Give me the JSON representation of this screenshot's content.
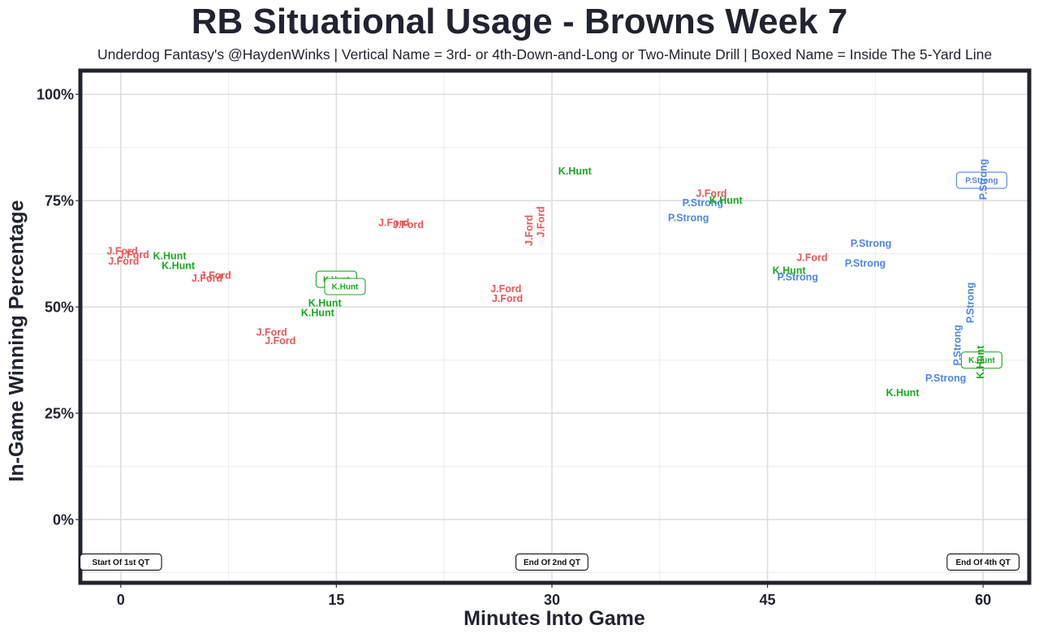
{
  "chart_data": {
    "type": "scatter",
    "title": "RB Situational Usage - Browns Week 7",
    "subtitle": "Underdog Fantasy's @HaydenWinks | Vertical Name = 3rd- or 4th-Down-and-Long or Two-Minute Drill | Boxed Name = Inside The 5-Yard Line",
    "xlabel": "Minutes Into Game",
    "ylabel": "In-Game Winning Percentage",
    "xlim": [
      -2.7,
      63.1
    ],
    "ylim": [
      -14.5,
      105.2
    ],
    "x_ticks": [
      0,
      15,
      30,
      45,
      60
    ],
    "x_tick_labels": [
      "0",
      "15",
      "30",
      "45",
      "60"
    ],
    "y_ticks": [
      0,
      25,
      50,
      75,
      100
    ],
    "y_tick_labels": [
      "0%",
      "25%",
      "50%",
      "75%",
      "100%"
    ],
    "grid": true,
    "colors": {
      "J.Ford": "#f05454",
      "K.Hunt": "#19aa1e",
      "P.Strong": "#4f86e8"
    },
    "markers": [
      {
        "label": "Start Of 1st QT",
        "x": 0,
        "y": -10
      },
      {
        "label": "End Of 2nd QT",
        "x": 30,
        "y": -10
      },
      {
        "label": "End Of 4th QT",
        "x": 60,
        "y": -10
      }
    ],
    "points": [
      {
        "player": "J.Ford",
        "x": 0.1,
        "y": 63.2
      },
      {
        "player": "J.Ford",
        "x": 0.9,
        "y": 62.3
      },
      {
        "player": "J.Ford",
        "x": 0.2,
        "y": 60.8
      },
      {
        "player": "K.Hunt",
        "x": 3.4,
        "y": 62.1
      },
      {
        "player": "K.Hunt",
        "x": 4.0,
        "y": 59.8
      },
      {
        "player": "J.Ford",
        "x": 6.6,
        "y": 57.5
      },
      {
        "player": "J.Ford",
        "x": 6.0,
        "y": 56.8
      },
      {
        "player": "K.Hunt",
        "x": 15.0,
        "y": 56.5,
        "boxed": true
      },
      {
        "player": "K.Hunt",
        "x": 15.6,
        "y": 54.8,
        "boxed": true
      },
      {
        "player": "K.Hunt",
        "x": 14.2,
        "y": 51.0
      },
      {
        "player": "K.Hunt",
        "x": 13.7,
        "y": 48.7
      },
      {
        "player": "J.Ford",
        "x": 10.5,
        "y": 44.1
      },
      {
        "player": "J.Ford",
        "x": 11.1,
        "y": 42.1
      },
      {
        "player": "J.Ford",
        "x": 19.0,
        "y": 69.9
      },
      {
        "player": "J.Ford",
        "x": 20.0,
        "y": 69.4
      },
      {
        "player": "J.Ford",
        "x": 29.2,
        "y": 70.0,
        "vertical": true
      },
      {
        "player": "J.Ford",
        "x": 28.4,
        "y": 68.0,
        "vertical": true
      },
      {
        "player": "K.Hunt",
        "x": 31.6,
        "y": 82.0
      },
      {
        "player": "J.Ford",
        "x": 26.8,
        "y": 54.3
      },
      {
        "player": "J.Ford",
        "x": 26.9,
        "y": 52.0
      },
      {
        "player": "J.Ford",
        "x": 41.1,
        "y": 76.8
      },
      {
        "player": "P.Strong",
        "x": 40.5,
        "y": 74.6
      },
      {
        "player": "K.Hunt",
        "x": 42.1,
        "y": 75.1
      },
      {
        "player": "P.Strong",
        "x": 39.5,
        "y": 71.0
      },
      {
        "player": "P.Strong",
        "x": 52.2,
        "y": 65.0
      },
      {
        "player": "J.Ford",
        "x": 48.1,
        "y": 61.7
      },
      {
        "player": "P.Strong",
        "x": 51.8,
        "y": 60.3
      },
      {
        "player": "K.Hunt",
        "x": 46.5,
        "y": 58.6
      },
      {
        "player": "P.Strong",
        "x": 47.1,
        "y": 57.1
      },
      {
        "player": "P.Strong",
        "x": 59.9,
        "y": 79.8,
        "boxed": true
      },
      {
        "player": "P.Strong",
        "x": 60.0,
        "y": 80.0,
        "vertical": true
      },
      {
        "player": "P.Strong",
        "x": 59.1,
        "y": 51.0,
        "vertical": true
      },
      {
        "player": "P.Strong",
        "x": 58.2,
        "y": 41.0,
        "vertical": true
      },
      {
        "player": "K.Hunt",
        "x": 59.9,
        "y": 37.5,
        "boxed": true
      },
      {
        "player": "K.Hunt",
        "x": 59.8,
        "y": 37.0,
        "vertical": true
      },
      {
        "player": "P.Strong",
        "x": 57.4,
        "y": 33.3
      },
      {
        "player": "K.Hunt",
        "x": 54.4,
        "y": 29.9
      }
    ]
  }
}
